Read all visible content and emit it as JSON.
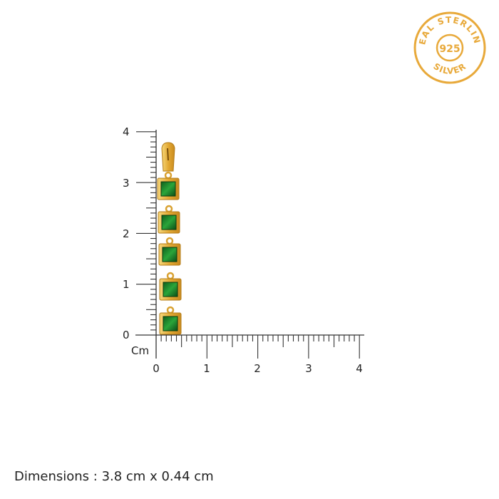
{
  "seal": {
    "top_text": "REAL STERLING",
    "center_text": "925",
    "bottom_text": "SILVER",
    "color": "#e8a93a"
  },
  "ruler": {
    "unit": "Cm",
    "x_labels": [
      "0",
      "1",
      "2",
      "3",
      "4"
    ],
    "y_labels": [
      "0",
      "1",
      "2",
      "3",
      "4"
    ],
    "range_cm": [
      0,
      4
    ],
    "minor_step_cm": 0.1
  },
  "product": {
    "stone_count": 5,
    "metal_color": "#e8b84a",
    "stone_color": "#1e8a2e"
  },
  "dimensions": {
    "label": "Dimensions : 3.8 cm x 0.44 cm"
  }
}
